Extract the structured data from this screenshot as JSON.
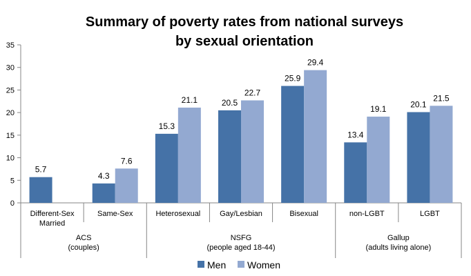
{
  "chart_data": {
    "type": "bar",
    "title": [
      "Summary of poverty rates from national surveys",
      "by sexual orientation"
    ],
    "ylim": [
      0,
      35
    ],
    "yticks": [
      0,
      5,
      10,
      15,
      20,
      25,
      30,
      35
    ],
    "grid": false,
    "legend_position": "bottom",
    "groups": [
      {
        "label": [
          "ACS",
          "(couples)"
        ],
        "categories": [
          [
            "Different-Sex",
            "Married"
          ],
          [
            "Same-Sex"
          ]
        ]
      },
      {
        "label": [
          "NSFG",
          "(people aged 18-44)"
        ],
        "categories": [
          [
            "Heterosexual"
          ],
          [
            "Gay/Lesbian"
          ],
          [
            "Bisexual"
          ]
        ]
      },
      {
        "label": [
          "Gallup",
          "(adults living alone)"
        ],
        "categories": [
          [
            "non-LGBT"
          ],
          [
            "LGBT"
          ]
        ]
      }
    ],
    "series": [
      {
        "name": "Men",
        "color": "#4572a7",
        "values": [
          5.7,
          4.3,
          15.3,
          20.5,
          25.9,
          13.4,
          20.1
        ]
      },
      {
        "name": "Women",
        "color": "#93a9d1",
        "values": [
          null,
          7.6,
          21.1,
          22.7,
          29.4,
          19.1,
          21.5
        ]
      }
    ]
  }
}
